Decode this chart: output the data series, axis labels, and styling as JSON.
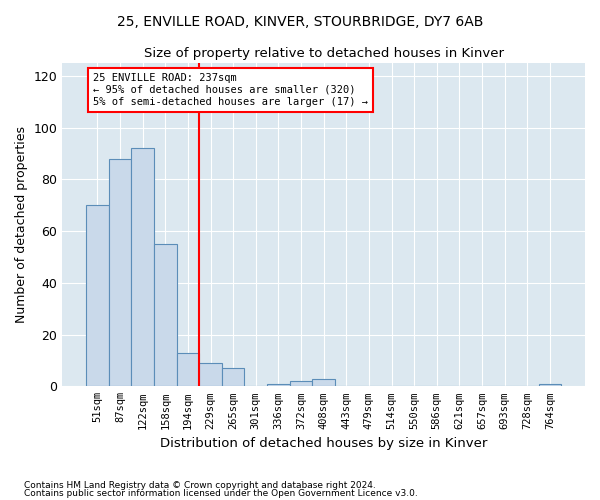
{
  "title1": "25, ENVILLE ROAD, KINVER, STOURBRIDGE, DY7 6AB",
  "title2": "Size of property relative to detached houses in Kinver",
  "xlabel": "Distribution of detached houses by size in Kinver",
  "ylabel": "Number of detached properties",
  "bar_labels": [
    "51sqm",
    "87sqm",
    "122sqm",
    "158sqm",
    "194sqm",
    "229sqm",
    "265sqm",
    "301sqm",
    "336sqm",
    "372sqm",
    "408sqm",
    "443sqm",
    "479sqm",
    "514sqm",
    "550sqm",
    "586sqm",
    "621sqm",
    "657sqm",
    "693sqm",
    "728sqm",
    "764sqm"
  ],
  "bar_values": [
    70,
    88,
    92,
    55,
    13,
    9,
    7,
    0,
    1,
    2,
    3,
    0,
    0,
    0,
    0,
    0,
    0,
    0,
    0,
    0,
    1
  ],
  "bar_color": "#c9d9ea",
  "bar_edge_color": "#5b8db8",
  "vline_position": 5,
  "vline_color": "red",
  "annotation_text": "25 ENVILLE ROAD: 237sqm\n← 95% of detached houses are smaller (320)\n5% of semi-detached houses are larger (17) →",
  "annotation_box_color": "white",
  "annotation_box_edge_color": "red",
  "ylim": [
    0,
    125
  ],
  "yticks": [
    0,
    20,
    40,
    60,
    80,
    100,
    120
  ],
  "footer1": "Contains HM Land Registry data © Crown copyright and database right 2024.",
  "footer2": "Contains public sector information licensed under the Open Government Licence v3.0.",
  "bg_color": "#dce8f0"
}
